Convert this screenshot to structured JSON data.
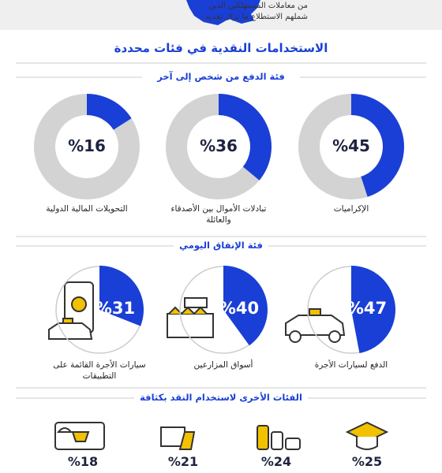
{
  "header": {
    "lines": [
      "من معاملات المستهلكين الذين",
      "شملهم الاستطلاع ما تزال نقدية."
    ]
  },
  "title": "الاستخدامات النقدية في فئات محددة",
  "sections": [
    {
      "heading": "فئة الدفع من شخص إلى آخر",
      "items": [
        {
          "label": "الإكراميات",
          "value": 45,
          "value_label": "%45"
        },
        {
          "label": "تبادلات الأموال بين الأصدقاء والعائلة",
          "value": 36,
          "value_label": "%36"
        },
        {
          "label": "التحويلات المالية الدولية",
          "value": 16,
          "value_label": "%16"
        }
      ]
    },
    {
      "heading": "فئة الإنفاق اليومي",
      "items": [
        {
          "label": "الدفع لسيارات الأجرة",
          "value": 47,
          "value_label": "%47"
        },
        {
          "label": "أسواق المزارعين",
          "value": 40,
          "value_label": "%40"
        },
        {
          "label": "سيارات الأجرة القائمة على التطبيقات",
          "value": 31,
          "value_label": "%31"
        }
      ]
    },
    {
      "heading": "الفئات الأخرى لاستخدام النقد بكثافة",
      "items": [
        {
          "value": 25,
          "value_label": "%25"
        },
        {
          "value": 24,
          "value_label": "%24"
        },
        {
          "value": 21,
          "value_label": "%21"
        },
        {
          "value": 18,
          "value_label": "%18"
        }
      ]
    }
  ]
}
